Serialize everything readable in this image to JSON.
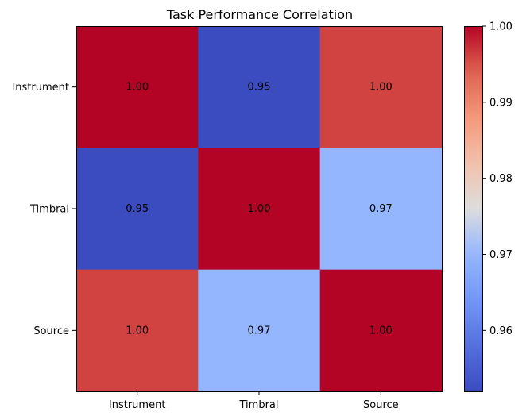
{
  "chart_data": {
    "type": "heatmap",
    "title": "Task Performance Correlation",
    "x_categories": [
      "Instrument",
      "Timbral",
      "Source"
    ],
    "y_categories": [
      "Instrument",
      "Timbral",
      "Source"
    ],
    "values": [
      [
        1.0,
        0.952,
        0.996
      ],
      [
        0.952,
        1.0,
        0.97
      ],
      [
        0.996,
        0.97,
        1.0
      ]
    ],
    "cell_labels": [
      [
        "1.00",
        "0.95",
        "1.00"
      ],
      [
        "0.95",
        "1.00",
        "0.97"
      ],
      [
        "1.00",
        "0.97",
        "1.00"
      ]
    ],
    "colormap": "coolwarm",
    "color_low": "#3b4cc0",
    "color_high": "#b40426",
    "colorbar": {
      "range": [
        0.952,
        1.0
      ],
      "ticks": [
        0.96,
        0.97,
        0.98,
        0.99,
        1.0
      ],
      "tick_labels": [
        "0.96",
        "0.97",
        "0.98",
        "0.99",
        "1.00"
      ],
      "placement": "right"
    }
  }
}
